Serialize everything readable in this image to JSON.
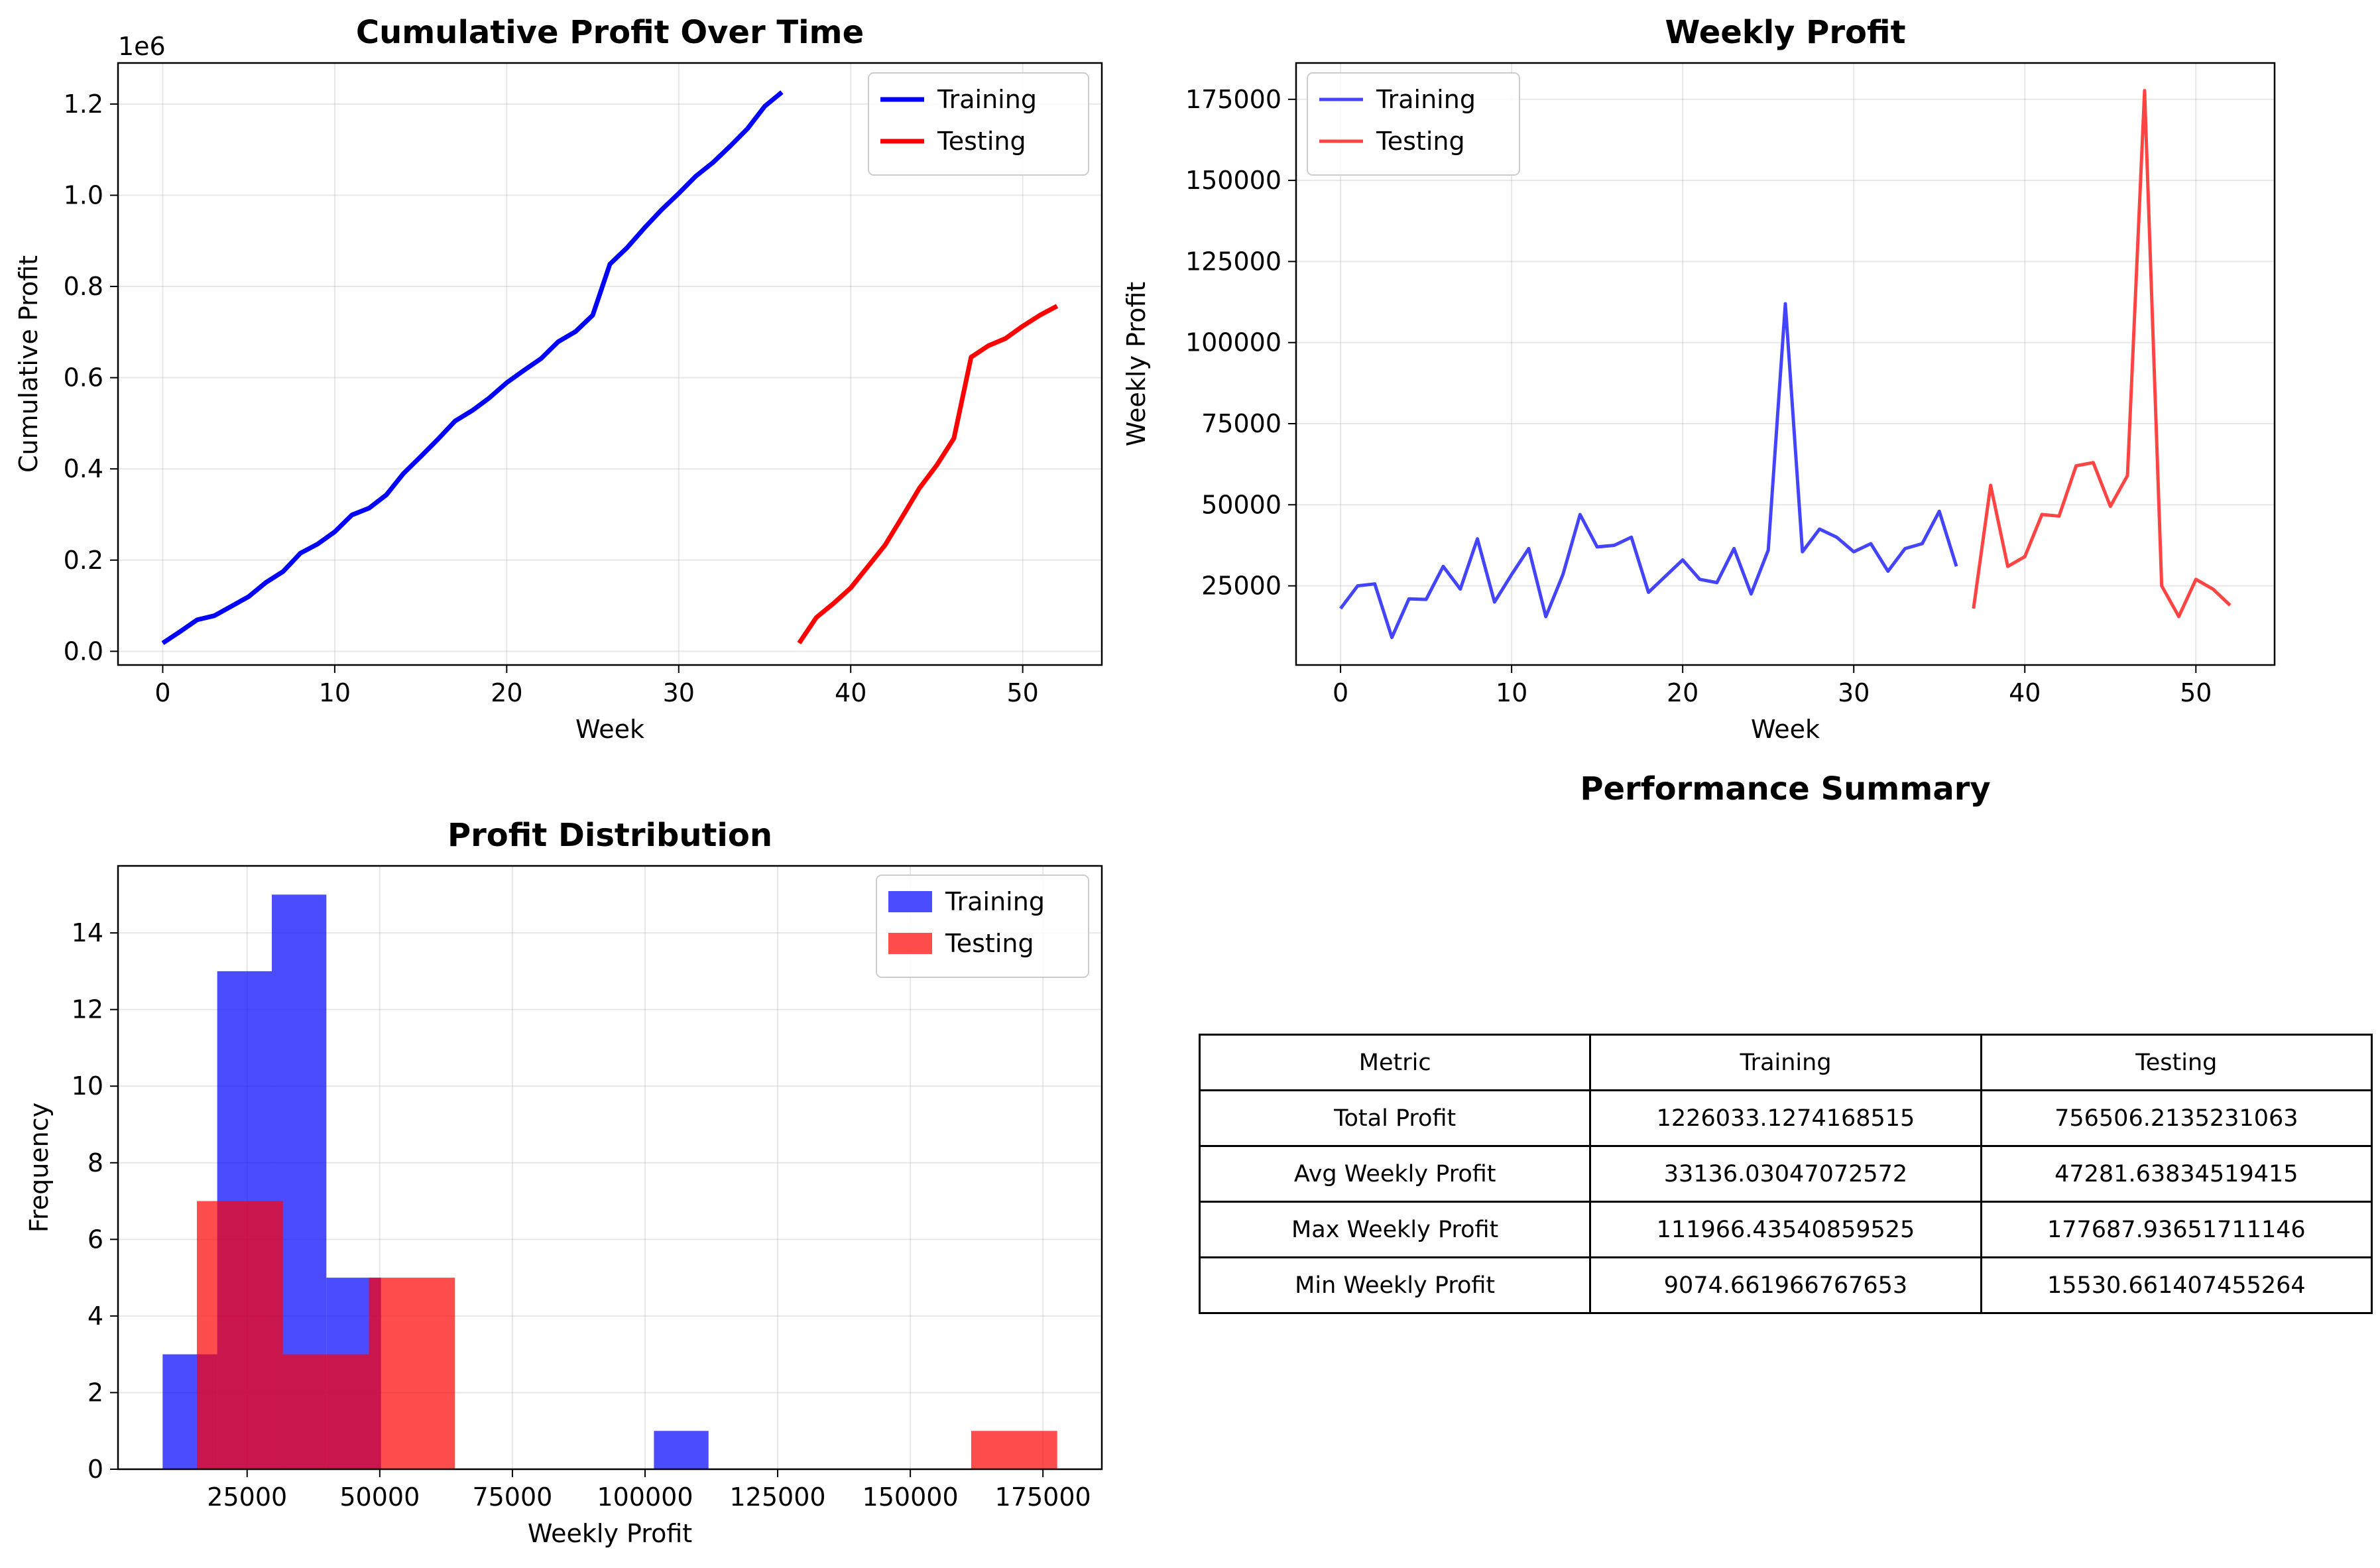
{
  "chart_data": [
    {
      "type": "line",
      "title": "Cumulative Profit Over Time",
      "xlabel": "Week",
      "ylabel": "Cumulative Profit",
      "offset_label": "1e6",
      "xlim": [
        -2.6,
        54.6
      ],
      "ylim": [
        -0.03,
        1.29
      ],
      "xticks": [
        0,
        10,
        20,
        30,
        40,
        50
      ],
      "yticks": [
        0.0,
        0.2,
        0.4,
        0.6,
        0.8,
        1.0,
        1.2
      ],
      "ytick_labels": [
        "0.0",
        "0.2",
        "0.4",
        "0.6",
        "0.8",
        "1.0",
        "1.2"
      ],
      "grid": true,
      "legend": "top-right",
      "series": [
        {
          "name": "Training",
          "color": "#0000ff",
          "x": [
            0,
            1,
            2,
            3,
            4,
            5,
            6,
            7,
            8,
            9,
            10,
            11,
            12,
            13,
            14,
            15,
            16,
            17,
            18,
            19,
            20,
            21,
            22,
            23,
            24,
            25,
            26,
            27,
            28,
            29,
            30,
            31,
            32,
            33,
            34,
            35,
            36
          ],
          "y": [
            0.018,
            0.043,
            0.069,
            0.078,
            0.099,
            0.12,
            0.151,
            0.175,
            0.215,
            0.235,
            0.262,
            0.299,
            0.314,
            0.343,
            0.39,
            0.427,
            0.465,
            0.505,
            0.528,
            0.556,
            0.589,
            0.616,
            0.642,
            0.679,
            0.701,
            0.737,
            0.849,
            0.885,
            0.928,
            0.968,
            1.004,
            1.042,
            1.072,
            1.108,
            1.146,
            1.195,
            1.226
          ]
        },
        {
          "name": "Testing",
          "color": "#ff0000",
          "x": [
            37,
            38,
            39,
            40,
            41,
            42,
            43,
            44,
            45,
            46,
            47,
            48,
            49,
            50,
            51,
            52
          ],
          "y": [
            0.018,
            0.074,
            0.105,
            0.139,
            0.186,
            0.233,
            0.295,
            0.358,
            0.408,
            0.467,
            0.645,
            0.67,
            0.686,
            0.713,
            0.737,
            0.757
          ]
        }
      ]
    },
    {
      "type": "line",
      "title": "Weekly Profit",
      "xlabel": "Week",
      "ylabel": "Weekly Profit",
      "xlim": [
        -2.6,
        54.6
      ],
      "ylim": [
        600,
        186200
      ],
      "xticks": [
        0,
        10,
        20,
        30,
        40,
        50
      ],
      "yticks": [
        25000,
        50000,
        75000,
        100000,
        125000,
        150000,
        175000
      ],
      "grid": true,
      "legend": "top-left",
      "series": [
        {
          "name": "Training",
          "color": "#4444ff",
          "x": [
            0,
            1,
            2,
            3,
            4,
            5,
            6,
            7,
            8,
            9,
            10,
            11,
            12,
            13,
            14,
            15,
            16,
            17,
            18,
            19,
            20,
            21,
            22,
            23,
            24,
            25,
            26,
            27,
            28,
            29,
            30,
            31,
            32,
            33,
            34,
            35,
            36
          ],
          "y": [
            18000,
            25000,
            25600,
            9075,
            21000,
            20800,
            31000,
            24000,
            39500,
            20000,
            28500,
            36500,
            15500,
            28500,
            47000,
            37000,
            37500,
            40000,
            23000,
            28000,
            33000,
            27000,
            26000,
            36500,
            22500,
            36000,
            111966,
            35500,
            42500,
            40000,
            35500,
            38000,
            29500,
            36500,
            38000,
            48000,
            31000
          ]
        },
        {
          "name": "Testing",
          "color": "#ff4444",
          "x": [
            37,
            38,
            39,
            40,
            41,
            42,
            43,
            44,
            45,
            46,
            47,
            48,
            49,
            50,
            51,
            52
          ],
          "y": [
            18000,
            56000,
            31000,
            34000,
            47000,
            46500,
            62000,
            63000,
            49500,
            59000,
            177688,
            25000,
            15531,
            27000,
            24000,
            19000
          ]
        }
      ]
    },
    {
      "type": "bar",
      "title": "Profit Distribution",
      "xlabel": "Weekly Profit",
      "ylabel": "Frequency",
      "xlim": [
        665,
        186097
      ],
      "ylim": [
        0,
        15.75
      ],
      "xticks": [
        25000,
        50000,
        75000,
        100000,
        125000,
        150000,
        175000
      ],
      "yticks": [
        0,
        2,
        4,
        6,
        8,
        10,
        12,
        14
      ],
      "grid": true,
      "legend": "top-right",
      "series": [
        {
          "name": "Training",
          "color": "#0000ff",
          "opacity": 0.7,
          "bin_edges": [
            9075,
            19364,
            29653,
            39942,
            50231,
            60520,
            70809,
            81098,
            91387,
            101677,
            111966
          ],
          "counts": [
            3,
            13,
            15,
            5,
            0,
            0,
            0,
            0,
            0,
            1
          ]
        },
        {
          "name": "Testing",
          "color": "#ff0000",
          "opacity": 0.7,
          "bin_edges": [
            15531,
            31746,
            47962,
            64178,
            80393,
            96609,
            112825,
            129040,
            145256,
            161472,
            177688
          ],
          "counts": [
            7,
            3,
            5,
            0,
            0,
            0,
            0,
            0,
            0,
            1
          ]
        }
      ]
    },
    {
      "type": "table",
      "title": "Performance Summary",
      "columns": [
        "Metric",
        "Training",
        "Testing"
      ],
      "rows": [
        [
          "Total Profit",
          "1226033.1274168515",
          "756506.2135231063"
        ],
        [
          "Avg Weekly Profit",
          "33136.03047072572",
          "47281.63834519415"
        ],
        [
          "Max Weekly Profit",
          "111966.43540859525",
          "177687.93651711146"
        ],
        [
          "Min Weekly Profit",
          "9074.661966767653",
          "15530.661407455264"
        ]
      ]
    }
  ]
}
